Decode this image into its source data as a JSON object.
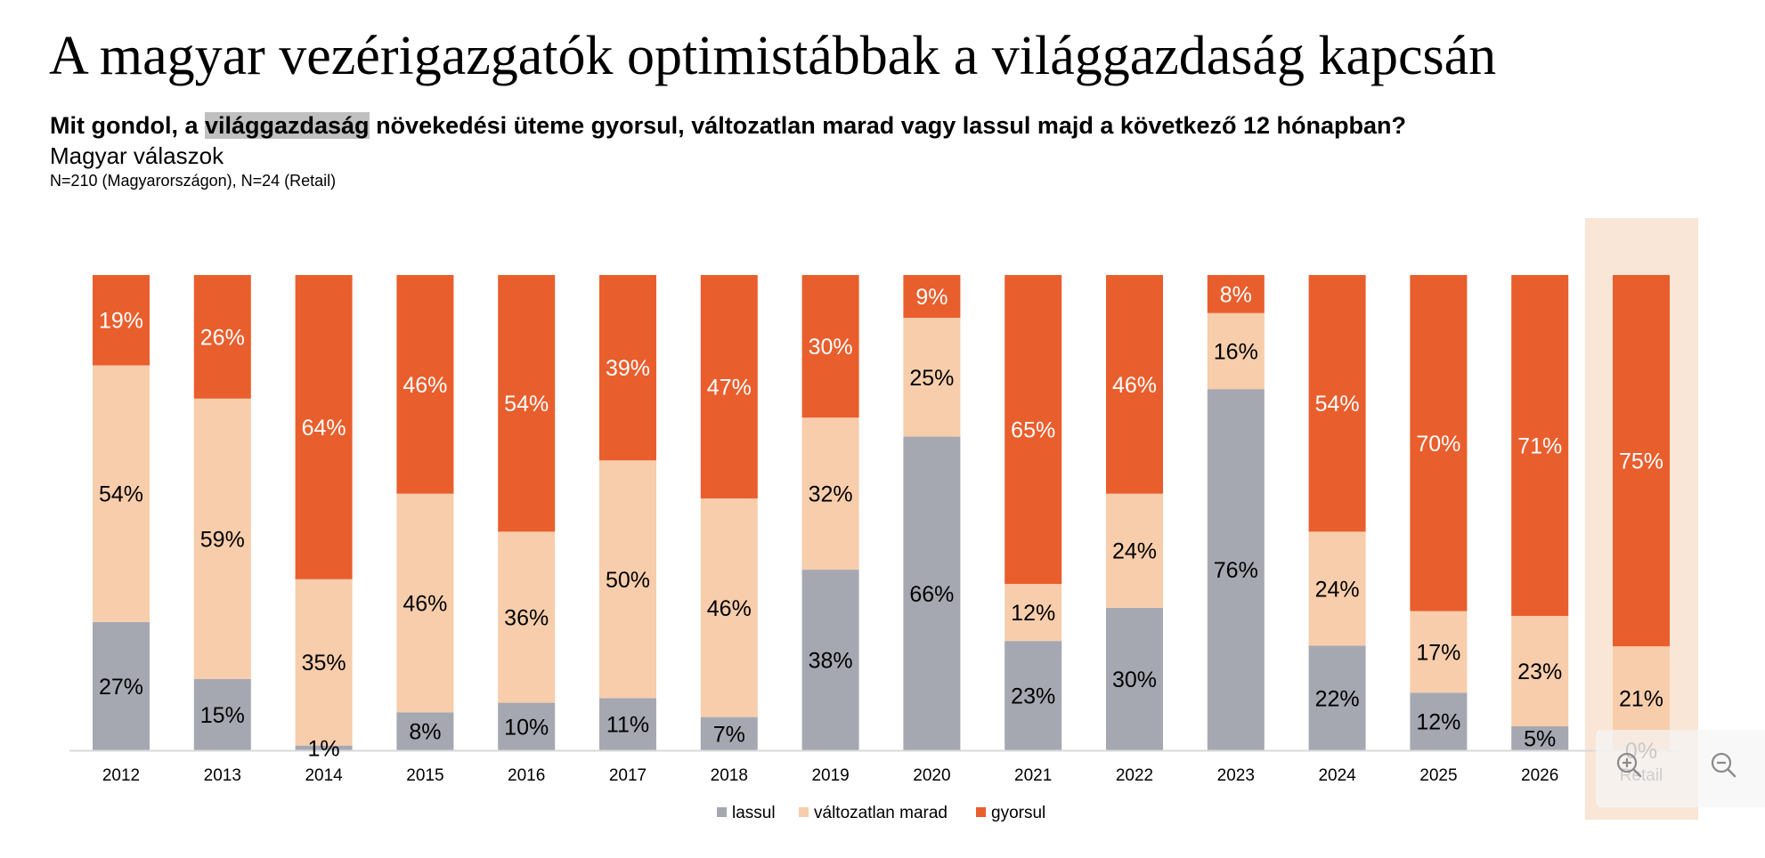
{
  "header": {
    "title": "A magyar vezérigazgatók optimistábbak a világgazdaság kapcsán",
    "question_before": "Mit gondol, a ",
    "question_highlight": "világgazdaság",
    "question_after": " növekedési üteme gyorsul, változatlan marad vagy lassul majd a következő 12 hónapban?",
    "subtitle": "Magyar válaszok",
    "sample_note": "N=210 (Magyarországon), N=24 (Retail)"
  },
  "zoom_controls": {
    "zoom_in_icon": "zoom-in-icon",
    "zoom_out_icon": "zoom-out-icon"
  },
  "chart_data": {
    "type": "bar",
    "stacked": true,
    "orientation": "vertical",
    "title": "A magyar vezérigazgatók optimistábbak a világgazdaság kapcsán",
    "xlabel": "",
    "ylabel": "",
    "value_format": "percent",
    "categories": [
      "2012",
      "2013",
      "2014",
      "2015",
      "2016",
      "2017",
      "2018",
      "2019",
      "2020",
      "2021",
      "2022",
      "2023",
      "2024",
      "2025",
      "2026",
      "Retail"
    ],
    "highlighted_category": "Retail",
    "series": [
      {
        "name": "lassul",
        "color": "#A5A8B1",
        "label_color": "#000000",
        "values": [
          27,
          15,
          1,
          8,
          10,
          11,
          7,
          38,
          66,
          23,
          30,
          76,
          22,
          12,
          5,
          0
        ]
      },
      {
        "name": "változatlan marad",
        "color": "#F7CDAB",
        "label_color": "#000000",
        "values": [
          54,
          59,
          35,
          46,
          36,
          50,
          46,
          32,
          25,
          12,
          24,
          16,
          24,
          17,
          23,
          21
        ]
      },
      {
        "name": "gyorsul",
        "color": "#E95E2D",
        "label_color": "#FFFFFF",
        "values": [
          19,
          26,
          64,
          46,
          54,
          39,
          47,
          30,
          9,
          65,
          46,
          8,
          54,
          70,
          71,
          75
        ]
      }
    ],
    "legend": {
      "position": "bottom",
      "entries": [
        "lassul",
        "változatlan marad",
        "gyorsul"
      ]
    },
    "grid": false,
    "highlight_color": "#FAE6D6"
  }
}
